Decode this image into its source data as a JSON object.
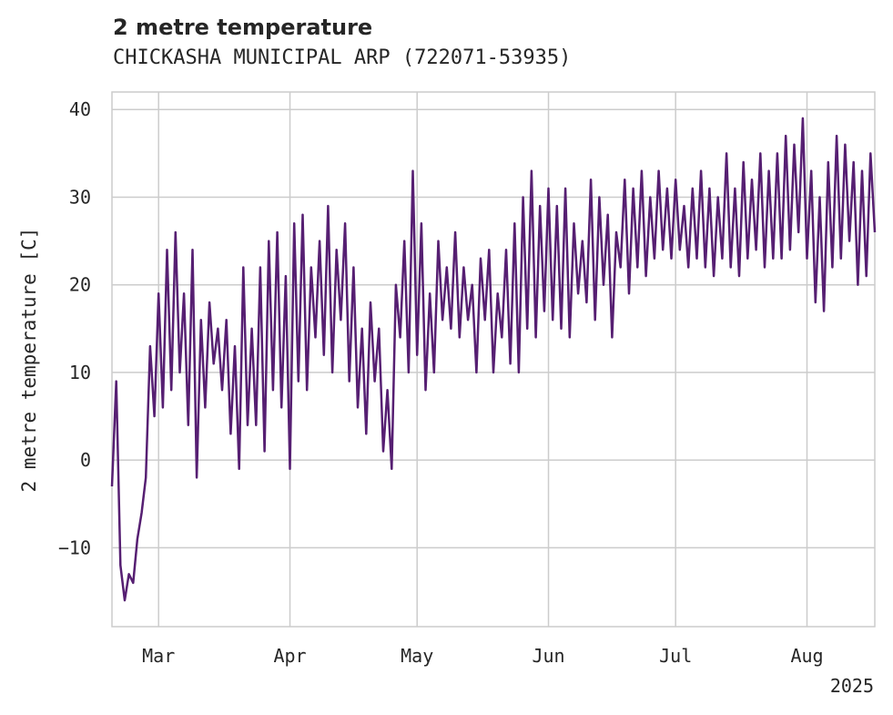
{
  "chart_data": {
    "type": "line",
    "title": "2 metre temperature",
    "subtitle": "CHICKASHA MUNICIPAL ARP (722071-53935)",
    "xlabel": "",
    "ylabel": "2 metre temperature [C]",
    "year_label": "2025",
    "xlim": [
      "2025-02-18",
      "2025-08-17"
    ],
    "ylim": [
      -19,
      42
    ],
    "x_ticks": [
      {
        "date": "2025-03-01",
        "label": "Mar"
      },
      {
        "date": "2025-04-01",
        "label": "Apr"
      },
      {
        "date": "2025-05-01",
        "label": "May"
      },
      {
        "date": "2025-06-01",
        "label": "Jun"
      },
      {
        "date": "2025-07-01",
        "label": "Jul"
      },
      {
        "date": "2025-08-01",
        "label": "Aug"
      }
    ],
    "y_ticks": [
      {
        "value": -10,
        "label": "−10"
      },
      {
        "value": 0,
        "label": "0"
      },
      {
        "value": 10,
        "label": "10"
      },
      {
        "value": 20,
        "label": "20"
      },
      {
        "value": 30,
        "label": "30"
      },
      {
        "value": 40,
        "label": "40"
      }
    ],
    "grid": true,
    "legend": "none",
    "series": [
      {
        "color": "#561f72",
        "points": [
          [
            "2025-02-18",
            -3
          ],
          [
            "2025-02-19",
            9
          ],
          [
            "2025-02-20",
            -12
          ],
          [
            "2025-02-21",
            -16
          ],
          [
            "2025-02-22",
            -13
          ],
          [
            "2025-02-23",
            -14
          ],
          [
            "2025-02-24",
            -9
          ],
          [
            "2025-02-25",
            -6
          ],
          [
            "2025-02-26",
            -2
          ],
          [
            "2025-02-27",
            13
          ],
          [
            "2025-02-28",
            5
          ],
          [
            "2025-03-01",
            19
          ],
          [
            "2025-03-02",
            6
          ],
          [
            "2025-03-03",
            24
          ],
          [
            "2025-03-04",
            8
          ],
          [
            "2025-03-05",
            26
          ],
          [
            "2025-03-06",
            10
          ],
          [
            "2025-03-07",
            19
          ],
          [
            "2025-03-08",
            4
          ],
          [
            "2025-03-09",
            24
          ],
          [
            "2025-03-10",
            -2
          ],
          [
            "2025-03-11",
            16
          ],
          [
            "2025-03-12",
            6
          ],
          [
            "2025-03-13",
            18
          ],
          [
            "2025-03-14",
            11
          ],
          [
            "2025-03-15",
            15
          ],
          [
            "2025-03-16",
            8
          ],
          [
            "2025-03-17",
            16
          ],
          [
            "2025-03-18",
            3
          ],
          [
            "2025-03-19",
            13
          ],
          [
            "2025-03-20",
            -1
          ],
          [
            "2025-03-21",
            22
          ],
          [
            "2025-03-22",
            4
          ],
          [
            "2025-03-23",
            15
          ],
          [
            "2025-03-24",
            4
          ],
          [
            "2025-03-25",
            22
          ],
          [
            "2025-03-26",
            1
          ],
          [
            "2025-03-27",
            25
          ],
          [
            "2025-03-28",
            8
          ],
          [
            "2025-03-29",
            26
          ],
          [
            "2025-03-30",
            6
          ],
          [
            "2025-03-31",
            21
          ],
          [
            "2025-04-01",
            -1
          ],
          [
            "2025-04-02",
            27
          ],
          [
            "2025-04-03",
            9
          ],
          [
            "2025-04-04",
            28
          ],
          [
            "2025-04-05",
            8
          ],
          [
            "2025-04-06",
            22
          ],
          [
            "2025-04-07",
            14
          ],
          [
            "2025-04-08",
            25
          ],
          [
            "2025-04-09",
            12
          ],
          [
            "2025-04-10",
            29
          ],
          [
            "2025-04-11",
            10
          ],
          [
            "2025-04-12",
            24
          ],
          [
            "2025-04-13",
            16
          ],
          [
            "2025-04-14",
            27
          ],
          [
            "2025-04-15",
            9
          ],
          [
            "2025-04-16",
            22
          ],
          [
            "2025-04-17",
            6
          ],
          [
            "2025-04-18",
            15
          ],
          [
            "2025-04-19",
            3
          ],
          [
            "2025-04-20",
            18
          ],
          [
            "2025-04-21",
            9
          ],
          [
            "2025-04-22",
            15
          ],
          [
            "2025-04-23",
            1
          ],
          [
            "2025-04-24",
            8
          ],
          [
            "2025-04-25",
            -1
          ],
          [
            "2025-04-26",
            20
          ],
          [
            "2025-04-27",
            14
          ],
          [
            "2025-04-28",
            25
          ],
          [
            "2025-04-29",
            10
          ],
          [
            "2025-04-30",
            33
          ],
          [
            "2025-05-01",
            12
          ],
          [
            "2025-05-02",
            27
          ],
          [
            "2025-05-03",
            8
          ],
          [
            "2025-05-04",
            19
          ],
          [
            "2025-05-05",
            10
          ],
          [
            "2025-05-06",
            25
          ],
          [
            "2025-05-07",
            16
          ],
          [
            "2025-05-08",
            22
          ],
          [
            "2025-05-09",
            15
          ],
          [
            "2025-05-10",
            26
          ],
          [
            "2025-05-11",
            14
          ],
          [
            "2025-05-12",
            22
          ],
          [
            "2025-05-13",
            16
          ],
          [
            "2025-05-14",
            20
          ],
          [
            "2025-05-15",
            10
          ],
          [
            "2025-05-16",
            23
          ],
          [
            "2025-05-17",
            16
          ],
          [
            "2025-05-18",
            24
          ],
          [
            "2025-05-19",
            10
          ],
          [
            "2025-05-20",
            19
          ],
          [
            "2025-05-21",
            14
          ],
          [
            "2025-05-22",
            24
          ],
          [
            "2025-05-23",
            11
          ],
          [
            "2025-05-24",
            27
          ],
          [
            "2025-05-25",
            10
          ],
          [
            "2025-05-26",
            30
          ],
          [
            "2025-05-27",
            15
          ],
          [
            "2025-05-28",
            33
          ],
          [
            "2025-05-29",
            14
          ],
          [
            "2025-05-30",
            29
          ],
          [
            "2025-05-31",
            17
          ],
          [
            "2025-06-01",
            31
          ],
          [
            "2025-06-02",
            16
          ],
          [
            "2025-06-03",
            29
          ],
          [
            "2025-06-04",
            15
          ],
          [
            "2025-06-05",
            31
          ],
          [
            "2025-06-06",
            14
          ],
          [
            "2025-06-07",
            27
          ],
          [
            "2025-06-08",
            19
          ],
          [
            "2025-06-09",
            25
          ],
          [
            "2025-06-10",
            18
          ],
          [
            "2025-06-11",
            32
          ],
          [
            "2025-06-12",
            16
          ],
          [
            "2025-06-13",
            30
          ],
          [
            "2025-06-14",
            20
          ],
          [
            "2025-06-15",
            28
          ],
          [
            "2025-06-16",
            14
          ],
          [
            "2025-06-17",
            26
          ],
          [
            "2025-06-18",
            22
          ],
          [
            "2025-06-19",
            32
          ],
          [
            "2025-06-20",
            19
          ],
          [
            "2025-06-21",
            31
          ],
          [
            "2025-06-22",
            22
          ],
          [
            "2025-06-23",
            33
          ],
          [
            "2025-06-24",
            21
          ],
          [
            "2025-06-25",
            30
          ],
          [
            "2025-06-26",
            23
          ],
          [
            "2025-06-27",
            33
          ],
          [
            "2025-06-28",
            24
          ],
          [
            "2025-06-29",
            31
          ],
          [
            "2025-06-30",
            23
          ],
          [
            "2025-07-01",
            32
          ],
          [
            "2025-07-02",
            24
          ],
          [
            "2025-07-03",
            29
          ],
          [
            "2025-07-04",
            22
          ],
          [
            "2025-07-05",
            31
          ],
          [
            "2025-07-06",
            23
          ],
          [
            "2025-07-07",
            33
          ],
          [
            "2025-07-08",
            22
          ],
          [
            "2025-07-09",
            31
          ],
          [
            "2025-07-10",
            21
          ],
          [
            "2025-07-11",
            30
          ],
          [
            "2025-07-12",
            23
          ],
          [
            "2025-07-13",
            35
          ],
          [
            "2025-07-14",
            22
          ],
          [
            "2025-07-15",
            31
          ],
          [
            "2025-07-16",
            21
          ],
          [
            "2025-07-17",
            34
          ],
          [
            "2025-07-18",
            23
          ],
          [
            "2025-07-19",
            32
          ],
          [
            "2025-07-20",
            24
          ],
          [
            "2025-07-21",
            35
          ],
          [
            "2025-07-22",
            22
          ],
          [
            "2025-07-23",
            33
          ],
          [
            "2025-07-24",
            23
          ],
          [
            "2025-07-25",
            35
          ],
          [
            "2025-07-26",
            23
          ],
          [
            "2025-07-27",
            37
          ],
          [
            "2025-07-28",
            24
          ],
          [
            "2025-07-29",
            36
          ],
          [
            "2025-07-30",
            26
          ],
          [
            "2025-07-31",
            39
          ],
          [
            "2025-08-01",
            23
          ],
          [
            "2025-08-02",
            33
          ],
          [
            "2025-08-03",
            18
          ],
          [
            "2025-08-04",
            30
          ],
          [
            "2025-08-05",
            17
          ],
          [
            "2025-08-06",
            34
          ],
          [
            "2025-08-07",
            22
          ],
          [
            "2025-08-08",
            37
          ],
          [
            "2025-08-09",
            23
          ],
          [
            "2025-08-10",
            36
          ],
          [
            "2025-08-11",
            25
          ],
          [
            "2025-08-12",
            34
          ],
          [
            "2025-08-13",
            20
          ],
          [
            "2025-08-14",
            33
          ],
          [
            "2025-08-15",
            21
          ],
          [
            "2025-08-16",
            35
          ],
          [
            "2025-08-17",
            26
          ]
        ]
      }
    ]
  }
}
